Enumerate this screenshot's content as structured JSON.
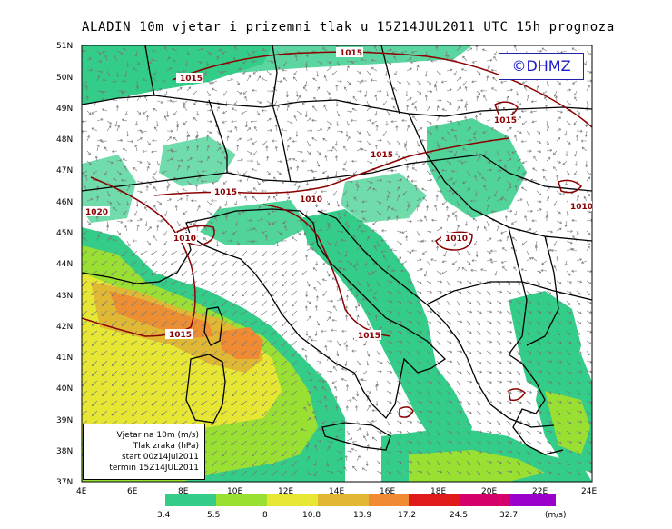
{
  "title": "ALADIN 10m vjetar i prizemni tlak u 15Z14JUL2011 UTC 15h prognoza",
  "copyright": "©DHMZ",
  "lat_labels": [
    "51N",
    "50N",
    "49N",
    "48N",
    "47N",
    "46N",
    "45N",
    "44N",
    "43N",
    "42N",
    "41N",
    "40N",
    "39N",
    "38N",
    "37N"
  ],
  "lon_labels": [
    "4E",
    "6E",
    "8E",
    "10E",
    "12E",
    "14E",
    "16E",
    "18E",
    "20E",
    "22E",
    "24E"
  ],
  "isobars": [
    "1015",
    "1015",
    "1015",
    "1015",
    "1015",
    "1015",
    "1010",
    "1010",
    "1010",
    "1020",
    "1015",
    "1010"
  ],
  "legend": {
    "line1": "Vjetar na 10m (m/s)",
    "line2": "Tlak zraka (hPa)",
    "line3": "start 00z14jul2011",
    "line4": "termin 15Z14JUL2011"
  },
  "colorbar": {
    "ticks": [
      "3.4",
      "5.5",
      "8",
      "10.8",
      "13.9",
      "17.2",
      "24.5",
      "32.7"
    ],
    "unit": "(m/s)",
    "colors": [
      "#33cc88",
      "#99e033",
      "#e6e633",
      "#e0b833",
      "#f08a33",
      "#e01a1a",
      "#d6006b",
      "#9900cc"
    ]
  },
  "colors": {
    "isobar": "#8b0000",
    "coast": "#000000",
    "wind_arrow": "#777777",
    "copyright": "#1a1acc"
  }
}
